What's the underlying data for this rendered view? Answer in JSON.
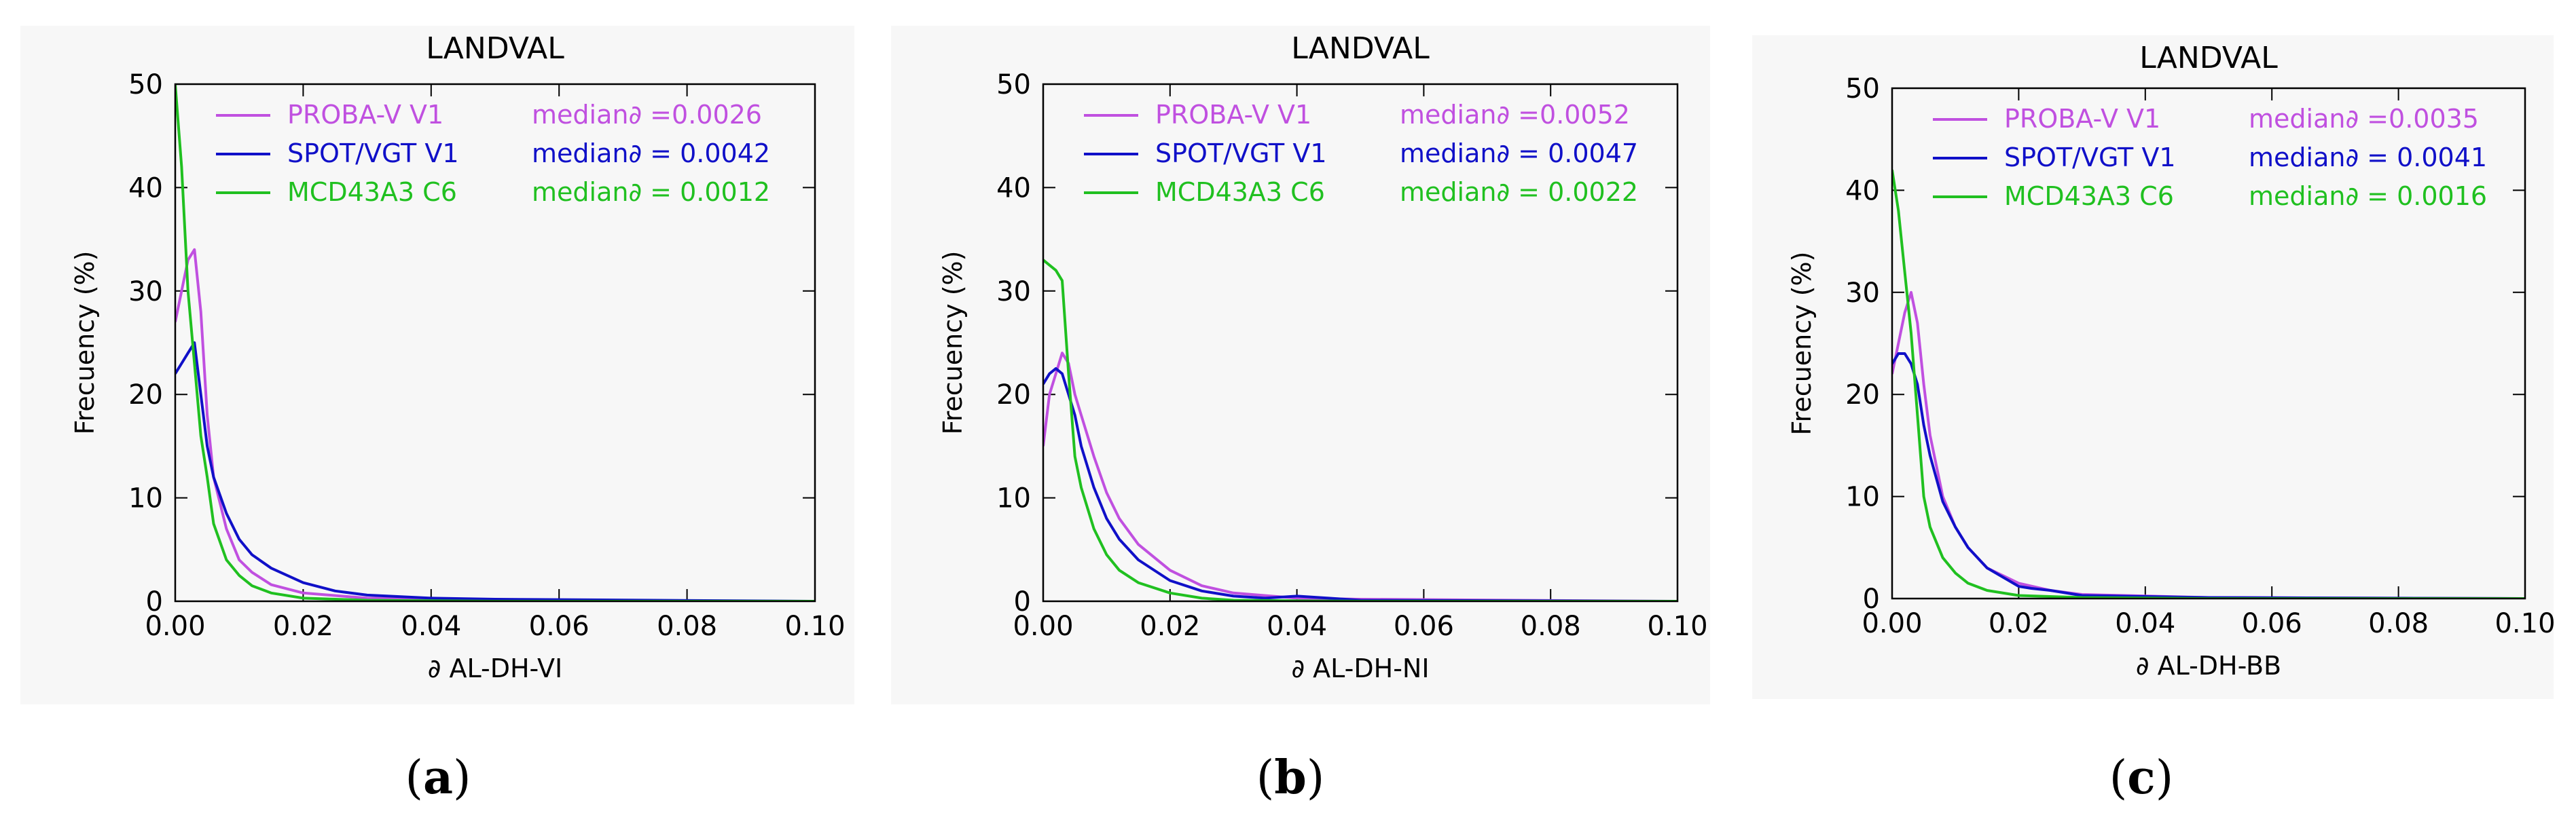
{
  "figure": {
    "captions": [
      {
        "open": "(",
        "letter": "a",
        "close": ")"
      },
      {
        "open": "(",
        "letter": "b",
        "close": ")"
      },
      {
        "open": "(",
        "letter": "c",
        "close": ")"
      }
    ]
  },
  "chart_data": [
    {
      "type": "line",
      "title": "LANDVAL",
      "xlabel": "∂ AL-DH-VI",
      "ylabel": "Frecuency (%)",
      "xlim": [
        0,
        0.1
      ],
      "ylim": [
        0,
        50
      ],
      "xticks": [
        "0.00",
        "0.02",
        "0.04",
        "0.06",
        "0.08",
        "0.10"
      ],
      "yticks": [
        "0",
        "10",
        "20",
        "30",
        "40",
        "50"
      ],
      "legend_position": "top",
      "series": [
        {
          "name": "PROBA-V V1",
          "stat": "median∂ =0.0026",
          "color": "#c050e0",
          "x": [
            0,
            0.001,
            0.002,
            0.003,
            0.004,
            0.005,
            0.006,
            0.008,
            0.01,
            0.012,
            0.015,
            0.02,
            0.03,
            0.05,
            0.1
          ],
          "y": [
            27,
            30,
            33,
            34,
            28,
            18,
            12,
            7,
            4,
            2.8,
            1.6,
            0.8,
            0.3,
            0.1,
            0
          ]
        },
        {
          "name": "SPOT/VGT V1",
          "stat": "median∂ = 0.0042",
          "color": "#1010c8",
          "x": [
            0,
            0.001,
            0.002,
            0.003,
            0.004,
            0.005,
            0.006,
            0.008,
            0.01,
            0.012,
            0.015,
            0.02,
            0.025,
            0.03,
            0.04,
            0.05,
            0.1
          ],
          "y": [
            22,
            23,
            24,
            25,
            20,
            15,
            12,
            8.5,
            6,
            4.5,
            3.2,
            1.8,
            1,
            0.6,
            0.3,
            0.2,
            0
          ]
        },
        {
          "name": "MCD43A3 C6",
          "stat": "median∂ = 0.0012",
          "color": "#20c020",
          "x": [
            0,
            0.001,
            0.002,
            0.003,
            0.004,
            0.005,
            0.006,
            0.008,
            0.01,
            0.012,
            0.015,
            0.02,
            0.03,
            0.05,
            0.1
          ],
          "y": [
            50,
            42,
            30,
            23,
            16,
            12,
            7.5,
            4,
            2.5,
            1.5,
            0.8,
            0.3,
            0.1,
            0,
            0
          ]
        }
      ]
    },
    {
      "type": "line",
      "title": "LANDVAL",
      "xlabel": "∂ AL-DH-NI",
      "ylabel": "Frecuency (%)",
      "xlim": [
        0,
        0.1
      ],
      "ylim": [
        0,
        50
      ],
      "xticks": [
        "0.00",
        "0.02",
        "0.04",
        "0.06",
        "0.08",
        "0.10"
      ],
      "yticks": [
        "0",
        "10",
        "20",
        "30",
        "40",
        "50"
      ],
      "legend_position": "top",
      "series": [
        {
          "name": "PROBA-V V1",
          "stat": "median∂ =0.0052",
          "color": "#c050e0",
          "x": [
            0,
            0.001,
            0.002,
            0.003,
            0.004,
            0.005,
            0.006,
            0.008,
            0.01,
            0.012,
            0.015,
            0.02,
            0.025,
            0.03,
            0.04,
            0.05,
            0.1
          ],
          "y": [
            15,
            20,
            22,
            24,
            23,
            20,
            18,
            14,
            10.5,
            8,
            5.5,
            3,
            1.5,
            0.8,
            0.3,
            0.2,
            0
          ]
        },
        {
          "name": "SPOT/VGT V1",
          "stat": "median∂ = 0.0047",
          "color": "#1010c8",
          "x": [
            0,
            0.001,
            0.002,
            0.003,
            0.004,
            0.005,
            0.006,
            0.008,
            0.01,
            0.012,
            0.015,
            0.02,
            0.025,
            0.03,
            0.035,
            0.04,
            0.045,
            0.05,
            0.1
          ],
          "y": [
            21,
            22,
            22.5,
            22,
            20,
            18,
            15,
            11,
            8,
            6,
            4,
            2,
            1,
            0.5,
            0.3,
            0.5,
            0.3,
            0.1,
            0
          ]
        },
        {
          "name": "MCD43A3 C6",
          "stat": "median∂ = 0.0022",
          "color": "#20c020",
          "x": [
            0,
            0.001,
            0.002,
            0.003,
            0.004,
            0.005,
            0.006,
            0.008,
            0.01,
            0.012,
            0.015,
            0.02,
            0.025,
            0.03,
            0.05,
            0.1
          ],
          "y": [
            33,
            32.5,
            32,
            31,
            22,
            14,
            11,
            7,
            4.5,
            3,
            1.8,
            0.8,
            0.3,
            0.1,
            0,
            0
          ]
        }
      ]
    },
    {
      "type": "line",
      "title": "LANDVAL",
      "xlabel": "∂ AL-DH-BB",
      "ylabel": "Frecuency (%)",
      "xlim": [
        0,
        0.1
      ],
      "ylim": [
        0,
        50
      ],
      "xticks": [
        "0.00",
        "0.02",
        "0.04",
        "0.06",
        "0.08",
        "0.10"
      ],
      "yticks": [
        "0",
        "10",
        "20",
        "30",
        "40",
        "50"
      ],
      "legend_position": "top",
      "series": [
        {
          "name": "PROBA-V V1",
          "stat": "median∂ =0.0035",
          "color": "#c050e0",
          "x": [
            0,
            0.001,
            0.002,
            0.003,
            0.004,
            0.005,
            0.006,
            0.008,
            0.01,
            0.012,
            0.015,
            0.02,
            0.025,
            0.03,
            0.05,
            0.1
          ],
          "y": [
            22,
            25,
            28,
            30,
            27,
            21,
            16,
            10,
            7,
            5,
            3,
            1.5,
            0.8,
            0.4,
            0.1,
            0
          ]
        },
        {
          "name": "SPOT/VGT V1",
          "stat": "median∂ = 0.0041",
          "color": "#1010c8",
          "x": [
            0,
            0.001,
            0.002,
            0.003,
            0.004,
            0.005,
            0.006,
            0.008,
            0.01,
            0.012,
            0.015,
            0.02,
            0.022,
            0.025,
            0.03,
            0.04,
            0.05,
            0.1
          ],
          "y": [
            23,
            24,
            24,
            23,
            21,
            17,
            14,
            9.5,
            7,
            5,
            3,
            1.2,
            1,
            0.8,
            0.3,
            0.2,
            0.1,
            0
          ]
        },
        {
          "name": "MCD43A3 C6",
          "stat": "median∂ = 0.0016",
          "color": "#20c020",
          "x": [
            0,
            0.001,
            0.002,
            0.003,
            0.004,
            0.005,
            0.006,
            0.008,
            0.01,
            0.012,
            0.015,
            0.02,
            0.03,
            0.05,
            0.1
          ],
          "y": [
            42,
            38,
            32,
            26,
            18,
            10,
            7,
            4,
            2.5,
            1.5,
            0.8,
            0.3,
            0.1,
            0,
            0
          ]
        }
      ]
    }
  ]
}
